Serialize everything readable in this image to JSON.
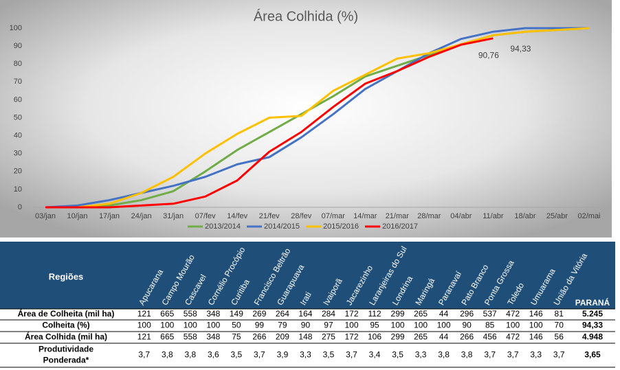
{
  "chart_data": {
    "type": "line",
    "title": "Área Colhida (%)",
    "categories": [
      "03/jan",
      "10/jan",
      "17/jan",
      "24/jan",
      "31/jan",
      "07/fev",
      "14/fev",
      "21/fev",
      "28/fev",
      "07/mar",
      "14/mar",
      "21/mar",
      "28/mar",
      "04/abr",
      "11/abr",
      "18/abr",
      "25/abr",
      "02/mai"
    ],
    "series": [
      {
        "name": "2013/2014",
        "color": "#70ad47",
        "values": [
          0,
          0,
          1,
          4,
          9,
          20,
          32,
          42,
          52,
          62,
          73,
          79,
          85,
          91,
          96,
          98,
          99,
          100
        ]
      },
      {
        "name": "2014/2015",
        "color": "#4472c4",
        "values": [
          0,
          1,
          4,
          8,
          12,
          17,
          24,
          28,
          39,
          52,
          66,
          76,
          86,
          94,
          98,
          100,
          100,
          100
        ]
      },
      {
        "name": "2015/2016",
        "color": "#ffc000",
        "values": [
          0,
          0,
          2,
          8,
          17,
          30,
          41,
          50,
          51,
          65,
          74,
          83,
          86,
          91,
          96,
          98,
          99,
          100
        ]
      },
      {
        "name": "2016/2017",
        "color": "#ff0000",
        "values": [
          0,
          0,
          0,
          1,
          2,
          6,
          15,
          31,
          42,
          56,
          69,
          76,
          84,
          90.76,
          94.33,
          null,
          null,
          null
        ],
        "value_labels": [
          null,
          null,
          null,
          null,
          null,
          null,
          null,
          null,
          null,
          null,
          null,
          null,
          null,
          "90,76",
          "94,33",
          null,
          null,
          null
        ]
      }
    ],
    "ylim": [
      0,
      100
    ],
    "yticks": [
      0,
      10,
      20,
      30,
      40,
      50,
      60,
      70,
      80,
      90,
      100
    ],
    "grid": false,
    "legend": "bottom"
  },
  "table": {
    "header": "Regiões",
    "total_header": "PARANÁ",
    "columns": [
      "Apucarana",
      "Campo Mourão",
      "Cascavel",
      "Cornélio Procópio",
      "Curitiba",
      "Francisco Beltrão",
      "Guarapuava",
      "Irati",
      "Ivaiporã",
      "Jacarezinho",
      "Laranjeiras do Sul",
      "Londrina",
      "Maringá",
      "Paranavaí",
      "Pato Branco",
      "Ponta Grossa",
      "Toledo",
      "Umuarama",
      "União da Vitória"
    ],
    "rows": [
      {
        "label": "Área de Colheita (mil ha)",
        "cells": [
          "121",
          "665",
          "558",
          "348",
          "149",
          "269",
          "264",
          "164",
          "284",
          "172",
          "112",
          "299",
          "265",
          "44",
          "296",
          "537",
          "472",
          "146",
          "81"
        ],
        "total": "5.245"
      },
      {
        "label": "Colheita (%)",
        "cells": [
          "100",
          "100",
          "100",
          "100",
          "50",
          "99",
          "79",
          "90",
          "97",
          "100",
          "95",
          "100",
          "100",
          "100",
          "90",
          "85",
          "100",
          "100",
          "70"
        ],
        "total": "94,33"
      },
      {
        "label": "Área Colhida (mil ha)",
        "cells": [
          "121",
          "665",
          "558",
          "348",
          "75",
          "266",
          "209",
          "148",
          "275",
          "172",
          "106",
          "299",
          "265",
          "44",
          "266",
          "456",
          "472",
          "146",
          "56"
        ],
        "total": "4.948"
      },
      {
        "label": "Produtividade Ponderada*",
        "cells": [
          "3,7",
          "3,8",
          "3,8",
          "3,6",
          "3,5",
          "3,7",
          "3,9",
          "3,3",
          "3,5",
          "3,7",
          "3,4",
          "3,5",
          "3,3",
          "3,8",
          "3,8",
          "3,7",
          "3,7",
          "3,3",
          "3,7"
        ],
        "total": "3,65"
      }
    ]
  }
}
